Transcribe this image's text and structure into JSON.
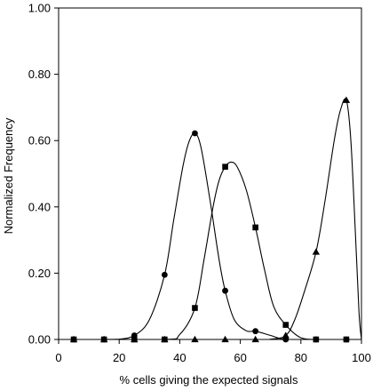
{
  "chart_data": {
    "type": "line",
    "title": "",
    "xlabel": "% cells giving the expected signals",
    "ylabel": "Normalized Frequency",
    "xlim": [
      0,
      100
    ],
    "ylim": [
      0,
      1.0
    ],
    "grid": false,
    "legend": "none",
    "x_ticks": [
      {
        "value": 0,
        "label": "0"
      },
      {
        "value": 20,
        "label": "20"
      },
      {
        "value": 40,
        "label": "40"
      },
      {
        "value": 60,
        "label": "60"
      },
      {
        "value": 80,
        "label": "80"
      },
      {
        "value": 100,
        "label": "100"
      }
    ],
    "y_ticks": [
      {
        "value": 0,
        "label": "0.00"
      },
      {
        "value": 0.2,
        "label": "0.20"
      },
      {
        "value": 0.4,
        "label": "0.40"
      },
      {
        "value": 0.6,
        "label": "0.60"
      },
      {
        "value": 0.8,
        "label": "0.80"
      },
      {
        "value": 1.0,
        "label": "1.00"
      }
    ],
    "series": [
      {
        "marker": "circle",
        "color": "#000000",
        "points": [
          {
            "x": 5,
            "y": 0.0
          },
          {
            "x": 15,
            "y": 0.0
          },
          {
            "x": 25,
            "y": 0.012
          },
          {
            "x": 35,
            "y": 0.195
          },
          {
            "x": 45,
            "y": 0.622
          },
          {
            "x": 55,
            "y": 0.147
          },
          {
            "x": 65,
            "y": 0.025
          },
          {
            "x": 75,
            "y": 0.0
          },
          {
            "x": 85,
            "y": 0.0
          },
          {
            "x": 95,
            "y": 0.0
          }
        ],
        "curve": [
          [
            5,
            0.0
          ],
          [
            15,
            0.0
          ],
          [
            20,
            0.001
          ],
          [
            25,
            0.012
          ],
          [
            30,
            0.06
          ],
          [
            35,
            0.195
          ],
          [
            38,
            0.36
          ],
          [
            41,
            0.52
          ],
          [
            43,
            0.595
          ],
          [
            45,
            0.622
          ],
          [
            47,
            0.58
          ],
          [
            50,
            0.42
          ],
          [
            53,
            0.24
          ],
          [
            55,
            0.147
          ],
          [
            58,
            0.06
          ],
          [
            62,
            0.026
          ],
          [
            65,
            0.025
          ],
          [
            70,
            0.012
          ],
          [
            75,
            0.0
          ],
          [
            85,
            0.0
          ],
          [
            95,
            0.0
          ]
        ]
      },
      {
        "marker": "square",
        "color": "#000000",
        "points": [
          {
            "x": 5,
            "y": 0.0
          },
          {
            "x": 15,
            "y": 0.0
          },
          {
            "x": 25,
            "y": 0.0
          },
          {
            "x": 35,
            "y": 0.0
          },
          {
            "x": 45,
            "y": 0.095
          },
          {
            "x": 55,
            "y": 0.521
          },
          {
            "x": 65,
            "y": 0.338
          },
          {
            "x": 75,
            "y": 0.044
          },
          {
            "x": 85,
            "y": 0.0
          },
          {
            "x": 95,
            "y": 0.0
          }
        ],
        "curve": [
          [
            5,
            0.0
          ],
          [
            35,
            0.0
          ],
          [
            40,
            0.015
          ],
          [
            45,
            0.095
          ],
          [
            48,
            0.24
          ],
          [
            51,
            0.4
          ],
          [
            53,
            0.48
          ],
          [
            55,
            0.521
          ],
          [
            57,
            0.535
          ],
          [
            59,
            0.52
          ],
          [
            62,
            0.45
          ],
          [
            65,
            0.338
          ],
          [
            68,
            0.21
          ],
          [
            71,
            0.1
          ],
          [
            75,
            0.044
          ],
          [
            80,
            0.005
          ],
          [
            85,
            0.0
          ],
          [
            95,
            0.0
          ]
        ]
      },
      {
        "marker": "triangle",
        "color": "#000000",
        "points": [
          {
            "x": 5,
            "y": 0.0
          },
          {
            "x": 15,
            "y": 0.0
          },
          {
            "x": 25,
            "y": 0.0
          },
          {
            "x": 35,
            "y": 0.0
          },
          {
            "x": 45,
            "y": 0.0
          },
          {
            "x": 55,
            "y": 0.0
          },
          {
            "x": 65,
            "y": 0.0
          },
          {
            "x": 75,
            "y": 0.012
          },
          {
            "x": 85,
            "y": 0.264
          },
          {
            "x": 95,
            "y": 0.722
          }
        ],
        "curve": [
          [
            5,
            0.0
          ],
          [
            65,
            0.0
          ],
          [
            70,
            0.001
          ],
          [
            75,
            0.012
          ],
          [
            78,
            0.06
          ],
          [
            81,
            0.14
          ],
          [
            85,
            0.264
          ],
          [
            88,
            0.42
          ],
          [
            91,
            0.6
          ],
          [
            93,
            0.69
          ],
          [
            95,
            0.722
          ],
          [
            96.5,
            0.6
          ],
          [
            98,
            0.32
          ],
          [
            99.2,
            0.08
          ],
          [
            100,
            0.0
          ]
        ]
      }
    ]
  }
}
